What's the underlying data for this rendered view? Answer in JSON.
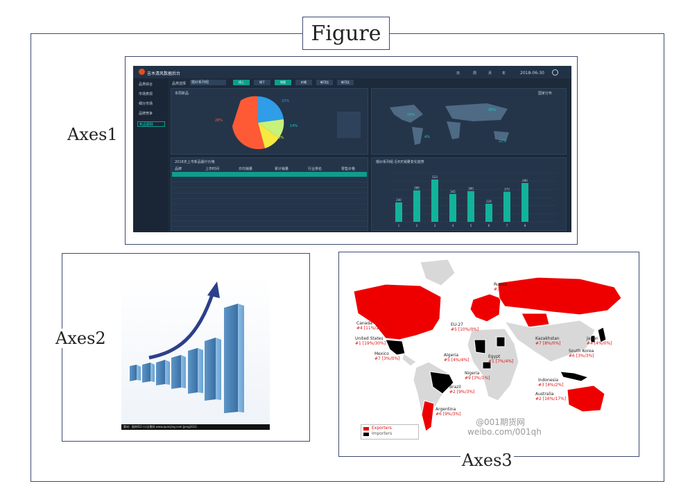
{
  "figure": {
    "title": "Figure"
  },
  "axes": [
    {
      "label": "Axes1"
    },
    {
      "label": "Axes2"
    },
    {
      "label": "Axes3"
    }
  ],
  "dashboard": {
    "app_title": "吉木清风数据后台",
    "date": "2018-06-30",
    "period_tabs": [
      "日",
      "周",
      "月",
      "年"
    ],
    "sidebar": [
      "品类综合",
      "市场表现",
      "细分市场",
      "品牌竞争",
      "新品跟踪"
    ],
    "filter_label": "品类选择",
    "filter_value": "婚纱系列组",
    "tabs": [
      "线上",
      "线下",
      "销量",
      "价格",
      "新可比",
      "新可比"
    ],
    "pie_title": "本周新品",
    "pie_slices": [
      "10%",
      "28%",
      "14%",
      "10%"
    ],
    "map_title": "国家分布",
    "map_pct": [
      "19%",
      "30%",
      "4%",
      "22%"
    ],
    "table_title": "2018天上市新品最什价格",
    "table_headers": [
      "品牌",
      "上市时间",
      "日均销量",
      "累计销量",
      "行业排名",
      "零售价格"
    ],
    "bar_title": "婚纱系列组 近8天销量变化趋势",
    "bar_values": [
      240,
      389,
      523,
      345,
      380,
      224,
      373,
      480
    ],
    "bar_x": [
      "1",
      "2",
      "3",
      "4",
      "5",
      "6",
      "7",
      "8"
    ]
  },
  "stock_caption": "素材：图库ID2  (c)全景网 www.quanjing.com  Jjeng2012",
  "map": {
    "countries": [
      {
        "name": "Russia",
        "value": "#3 [14%/0%]"
      },
      {
        "name": "Canada",
        "value": "#4 [11%/23%]"
      },
      {
        "name": "United States",
        "value": "#1 [19%/30%]"
      },
      {
        "name": "Mexico",
        "value": "#7 [3%/0%]"
      },
      {
        "name": "EU-27",
        "value": "#5 [10%/0%]"
      },
      {
        "name": "Kazakhstan",
        "value": "#7 [8%/0%]"
      },
      {
        "name": "Japan",
        "value": "#4 [4%/0%]"
      },
      {
        "name": "Algeria",
        "value": "#5 [4%/4%]"
      },
      {
        "name": "Egypt",
        "value": "#1 [7%/4%]"
      },
      {
        "name": "South Korea",
        "value": "#6 [3%/3%]"
      },
      {
        "name": "Nigeria",
        "value": "#9 [3%/1%]"
      },
      {
        "name": "Indonesia",
        "value": "#3 [4%/2%]"
      },
      {
        "name": "Brazil",
        "value": "#2 [9%/3%]"
      },
      {
        "name": "Australia",
        "value": "#2 [16%/17%]"
      },
      {
        "name": "Argentina",
        "value": "#6 [9%/3%]"
      }
    ],
    "legend": [
      "Exporters",
      "Importers"
    ],
    "watermark_1": "@001期货网",
    "watermark_2": "weibo.com/001qh",
    "colors": {
      "exporter": "#ee0000",
      "importer": "#000000",
      "land": "#d8d8d8"
    }
  }
}
